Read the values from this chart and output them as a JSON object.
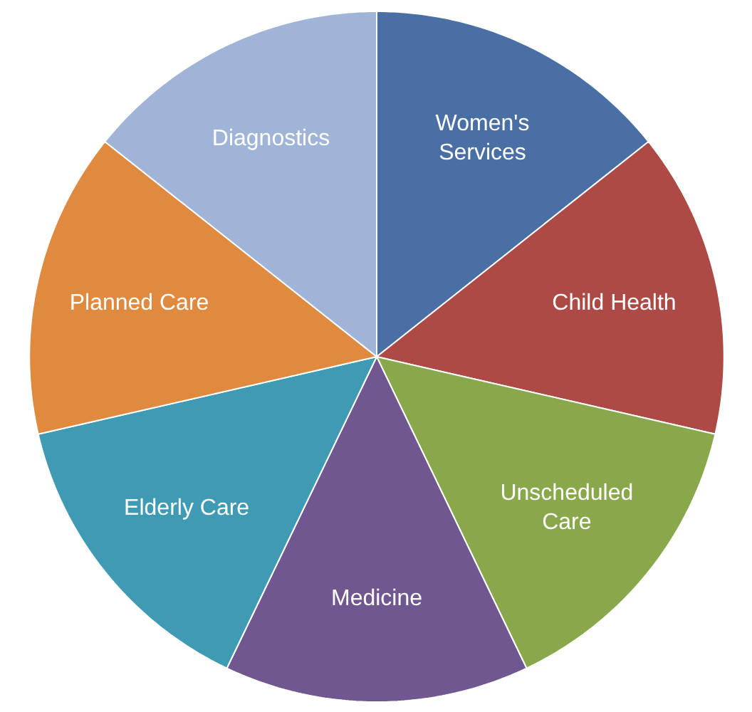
{
  "chart_data": {
    "type": "pie",
    "categories": [
      "Women's\nServices",
      "Child Health",
      "Unscheduled\nCare",
      "Medicine",
      "Elderly Care",
      "Planned Care",
      "Diagnostics"
    ],
    "values": [
      14.3,
      14.3,
      14.3,
      14.2,
      14.3,
      14.3,
      14.3
    ],
    "colors": [
      "#4a6fa5",
      "#ad4a46",
      "#88a84b",
      "#71578f",
      "#3f9bb4",
      "#e08a3f",
      "#9fb4d7"
    ]
  }
}
